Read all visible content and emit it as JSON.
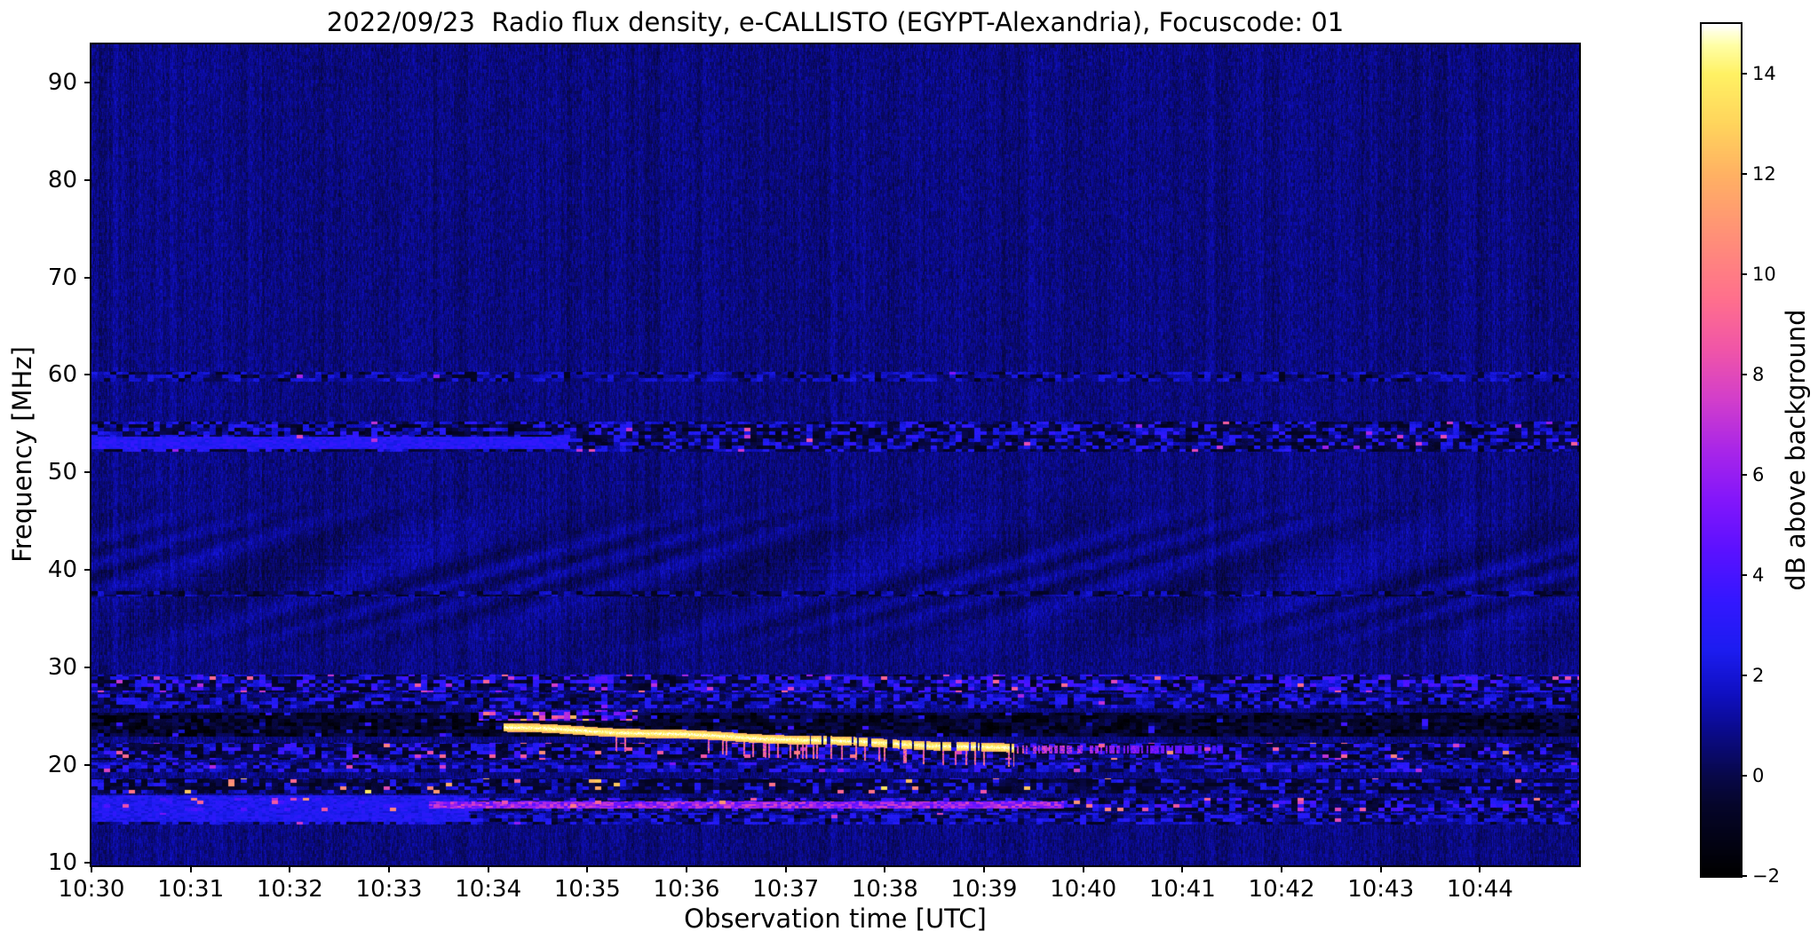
{
  "title": "2022/09/23  Radio flux density, e-CALLISTO (EGYPT-Alexandria), Focuscode: 01",
  "x_axis": {
    "label": "Observation time [UTC]",
    "tick_labels": [
      "10:30",
      "10:31",
      "10:32",
      "10:33",
      "10:34",
      "10:35",
      "10:36",
      "10:37",
      "10:38",
      "10:39",
      "10:40",
      "10:41",
      "10:42",
      "10:43",
      "10:44"
    ]
  },
  "y_axis": {
    "label": "Frequency [MHz]",
    "tick_labels": [
      "90",
      "80",
      "70",
      "60",
      "50",
      "40",
      "30",
      "20",
      "10"
    ],
    "tick_values": [
      90,
      80,
      70,
      60,
      50,
      40,
      30,
      20,
      10
    ]
  },
  "colorbar": {
    "label": "dB above background",
    "tick_labels": [
      "14",
      "12",
      "10",
      "8",
      "6",
      "4",
      "2",
      "0",
      "−2"
    ],
    "tick_values": [
      14,
      12,
      10,
      8,
      6,
      4,
      2,
      0,
      -2
    ],
    "value_min": -2,
    "value_max": 15
  },
  "chart_data": {
    "type": "heatmap",
    "title": "2022/09/23  Radio flux density, e-CALLISTO (EGYPT-Alexandria), Focuscode: 01",
    "xlabel": "Observation time [UTC]",
    "ylabel": "Frequency [MHz]",
    "x_range_utc": [
      "10:30",
      "10:45"
    ],
    "y_range_mhz": [
      9.7,
      93.9
    ],
    "value_range_db": [
      -2,
      15
    ],
    "background_db": 0.8,
    "colormap_stops": [
      [
        -2,
        "#000000"
      ],
      [
        -0.6,
        "#05052a"
      ],
      [
        0,
        "#08084a"
      ],
      [
        0.8,
        "#0a0a85"
      ],
      [
        1.6,
        "#0f0fc0"
      ],
      [
        2.5,
        "#1c1cf0"
      ],
      [
        3.5,
        "#3417ff"
      ],
      [
        4.5,
        "#5b11ff"
      ],
      [
        5.5,
        "#8316fb"
      ],
      [
        6.5,
        "#a926e8"
      ],
      [
        7.5,
        "#d23ecb"
      ],
      [
        8.5,
        "#f055a8"
      ],
      [
        9.5,
        "#ff6f8d"
      ],
      [
        10.75,
        "#ff8f78"
      ],
      [
        12,
        "#ffb163"
      ],
      [
        13,
        "#ffd45c"
      ],
      [
        14,
        "#fff163"
      ],
      [
        14.6,
        "#ffffa8"
      ],
      [
        15,
        "#ffffff"
      ]
    ],
    "moire_ripples": {
      "f": [
        31,
        48
      ],
      "amplitude_db": 0.5
    },
    "bands": [
      {
        "name": "rfi-line-60MHz",
        "f": [
          59.4,
          60.4
        ],
        "t": [
          0,
          15
        ],
        "kind": "speckle",
        "base": 1.2,
        "var": 1.1,
        "dropout": 0.22,
        "hot": 0.004,
        "hotv": [
          5,
          7
        ]
      },
      {
        "name": "rfi-band-53-55MHz",
        "f": [
          52.2,
          55.3
        ],
        "t": [
          0,
          15
        ],
        "kind": "speckle",
        "base": 1.3,
        "var": 1.9,
        "dropout": 0.38,
        "hot": 0.02,
        "hotv": [
          6,
          9
        ]
      },
      {
        "name": "bright-patch-53MHz-early",
        "f": [
          52.4,
          53.7
        ],
        "t": [
          0,
          4.8
        ],
        "kind": "smooth",
        "base": 2.9,
        "var": 1.4
      },
      {
        "name": "rfi-line-37.6MHz",
        "f": [
          37.3,
          37.9
        ],
        "t": [
          0,
          15
        ],
        "kind": "speckle",
        "base": 1.0,
        "var": 1.1,
        "dropout": 0.45,
        "hot": 0.012,
        "hotv": [
          5,
          7.5
        ]
      },
      {
        "name": "band-28MHz",
        "f": [
          27.5,
          29.3
        ],
        "t": [
          0,
          15
        ],
        "kind": "speckle",
        "base": 1.9,
        "var": 2.2,
        "dropout": 0.3,
        "hot": 0.045,
        "hotv": [
          6,
          9.5
        ]
      },
      {
        "name": "band-26.5MHz",
        "f": [
          25.9,
          27.3
        ],
        "t": [
          0,
          15
        ],
        "kind": "speckle",
        "base": 1.5,
        "var": 1.7,
        "dropout": 0.33,
        "hot": 0.012,
        "hotv": [
          5.5,
          8
        ]
      },
      {
        "name": "dark-band-23-25MHz",
        "f": [
          22.9,
          25.4
        ],
        "t": [
          0,
          15
        ],
        "kind": "dark",
        "base": -1.2,
        "var": 1.5,
        "hot": 0.03,
        "hotv": [
          1,
          4
        ]
      },
      {
        "name": "hot-speckle-25MHz-burst-onset",
        "f": [
          24.6,
          25.7
        ],
        "t": [
          3.9,
          5.5
        ],
        "kind": "speckle",
        "base": 3.5,
        "var": 3.5,
        "dropout": 0.25,
        "hot": 0.15,
        "hotv": [
          8,
          13
        ]
      },
      {
        "name": "band-21.5MHz",
        "f": [
          20.6,
          22.3
        ],
        "t": [
          0,
          15
        ],
        "kind": "speckle",
        "base": 1.3,
        "var": 2.4,
        "dropout": 0.4,
        "hot": 0.055,
        "hotv": [
          6,
          11
        ]
      },
      {
        "name": "band-19.8MHz",
        "f": [
          19.3,
          20.3
        ],
        "t": [
          0,
          15
        ],
        "kind": "speckle",
        "base": 1.7,
        "var": 1.7,
        "dropout": 0.25,
        "hot": 0.015,
        "hotv": [
          5,
          8
        ]
      },
      {
        "name": "band-17.8MHz-yellow-speckles",
        "f": [
          17.1,
          18.7
        ],
        "t": [
          0,
          15
        ],
        "kind": "speckle",
        "base": 0.9,
        "var": 2.0,
        "dropout": 0.48,
        "hot": 0.05,
        "hotv": [
          8,
          14
        ]
      },
      {
        "name": "band-16MHz",
        "f": [
          15.3,
          16.7
        ],
        "t": [
          0,
          15
        ],
        "kind": "speckle",
        "base": 1.6,
        "var": 2.4,
        "dropout": 0.33,
        "hot": 0.04,
        "hotv": [
          6,
          11
        ]
      },
      {
        "name": "pink-streak-16MHz-mid",
        "f": [
          15.6,
          16.3
        ],
        "t": [
          3.4,
          9.8
        ],
        "kind": "smooth",
        "base": 6.0,
        "var": 4.0
      },
      {
        "name": "band-14.5MHz",
        "f": [
          13.9,
          15.1
        ],
        "t": [
          0,
          15
        ],
        "kind": "speckle",
        "base": 1.5,
        "var": 1.5,
        "dropout": 0.28,
        "hot": 0.01,
        "hotv": [
          5,
          8
        ]
      },
      {
        "name": "bright-blue-low-left",
        "f": [
          14.2,
          16.9
        ],
        "t": [
          0,
          3.8
        ],
        "kind": "smooth",
        "base": 2.6,
        "var": 1.4
      }
    ],
    "burst": {
      "name": "slow-drifting-burst",
      "t_minutes_after_1030": [
        4.15,
        9.3
      ],
      "f_start_mhz": 23.9,
      "f_end_mhz": 21.7,
      "half_width_mhz": 0.45,
      "peak_db_range": [
        12.5,
        15
      ],
      "substructure_t": [
        5.2,
        9.3
      ],
      "substructure_depth_mhz": 1.9,
      "tail": {
        "t": [
          9.3,
          11.4
        ],
        "f_center_mhz": 21.65,
        "db_range": [
          5,
          10.5
        ]
      }
    }
  }
}
